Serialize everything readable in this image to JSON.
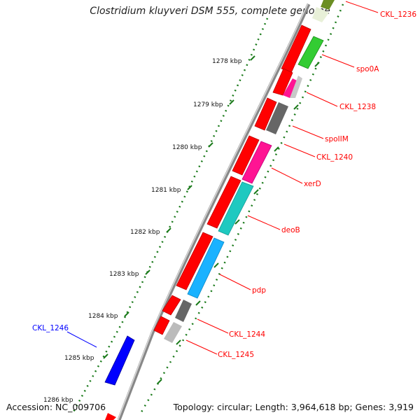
{
  "title": "Clostridium kluyveri DSM 555, complete genome",
  "footer": {
    "accession": "Accession: NC_009706",
    "summary": "Topology: circular; Length: 3,964,618 bp; Genes: 3,919"
  },
  "ruler": [
    {
      "label": "1278 kbp"
    },
    {
      "label": "1279 kbp"
    },
    {
      "label": "1280 kbp"
    },
    {
      "label": "1281 kbp"
    },
    {
      "label": "1282 kbp"
    },
    {
      "label": "1283 kbp"
    },
    {
      "label": "1284 kbp"
    },
    {
      "label": "1285 kbp"
    },
    {
      "label": "1286 kbp"
    }
  ],
  "gene_labels": [
    {
      "text": "CKL_1236",
      "color": "#ff0000"
    },
    {
      "text": "spo0A",
      "color": "#ff0000"
    },
    {
      "text": "CKL_1238",
      "color": "#ff0000"
    },
    {
      "text": "spoIIM",
      "color": "#ff0000"
    },
    {
      "text": "CKL_1240",
      "color": "#ff0000"
    },
    {
      "text": "xerD",
      "color": "#ff0000"
    },
    {
      "text": "deoB",
      "color": "#ff0000"
    },
    {
      "text": "pdp",
      "color": "#ff0000"
    },
    {
      "text": "CKL_1244",
      "color": "#ff0000"
    },
    {
      "text": "CKL_1245",
      "color": "#ff0000"
    },
    {
      "text": "CKL_1246",
      "color": "#0000ff"
    }
  ],
  "colors": {
    "cds_forward": "#ff0000",
    "cds_reverse_blue": "#0000ff",
    "backbone": "#888888",
    "tick": "#1a7a1a",
    "spo0A": "#33cc33",
    "spoIIM": "#666666",
    "xerD": "#ff1493",
    "deoB": "#1fc9c0",
    "pdp": "#1ab2ff",
    "CKL_1244": "#666666",
    "CKL_1245": "#bbbbbb",
    "CKL_1238": "#ff1493"
  }
}
